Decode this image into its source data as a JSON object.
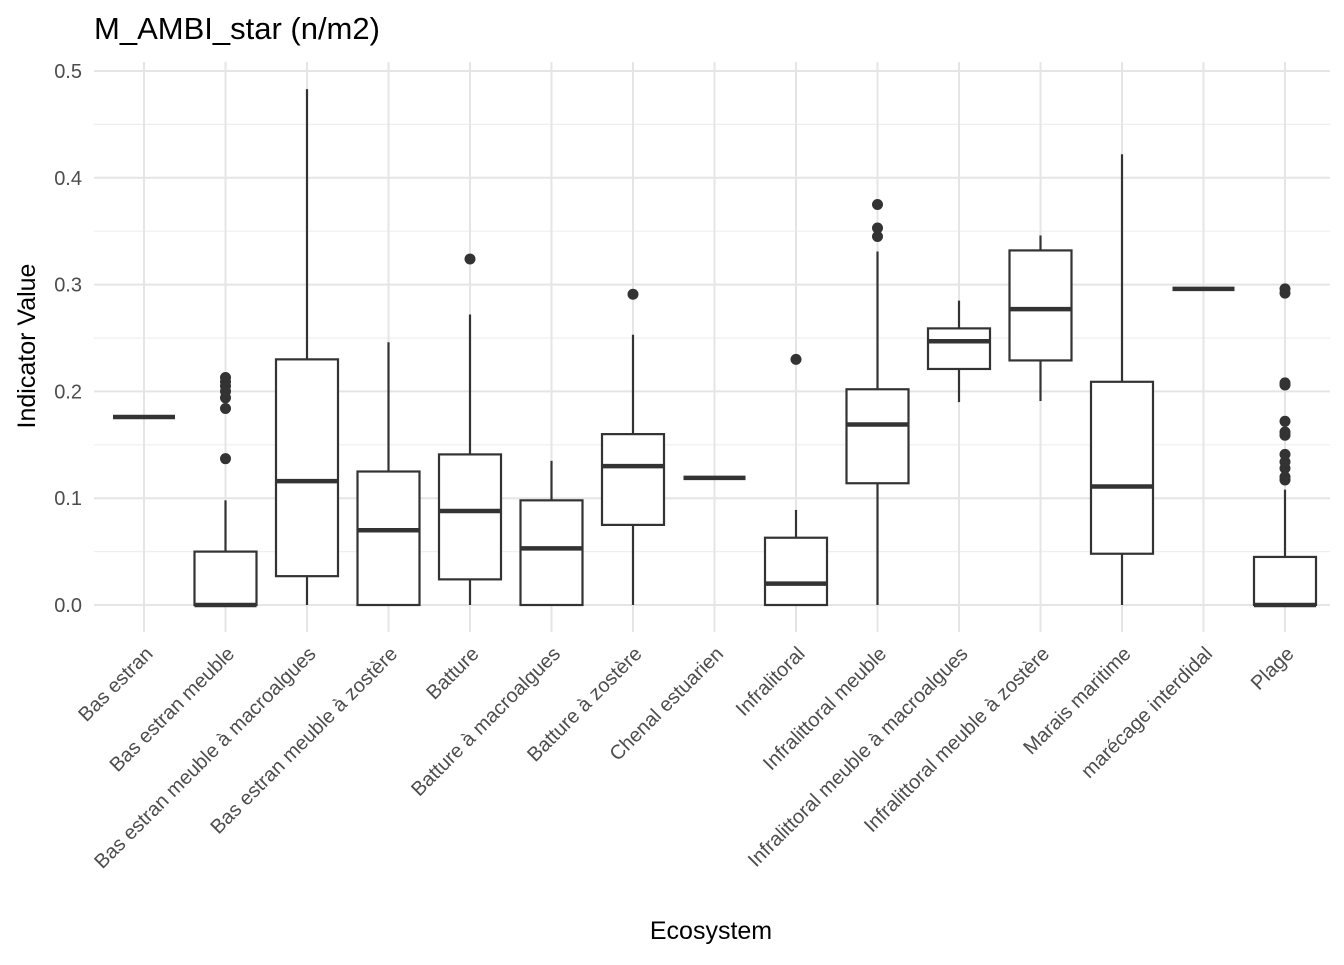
{
  "chart_data": {
    "type": "boxplot",
    "title": "M_AMBI_star (n/m2)",
    "xlabel": "Ecosystem",
    "ylabel": "Indicator Value",
    "ylim": [
      -0.025,
      0.51
    ],
    "yticks": [
      "0.0",
      "0.1",
      "0.2",
      "0.3",
      "0.4",
      "0.5"
    ],
    "grid": true,
    "categories": [
      "Bas estran",
      "Bas estran meuble",
      "Bas estran meuble à macroalgues",
      "Bas estran meuble à zostère",
      "Batture",
      "Batture à macroalgues",
      "Batture à zostère",
      "Chenal estuarien",
      "Infralitoral",
      "Infralittoral meuble",
      "Infralittoral meuble à macroalgues",
      "Infralittoral meuble à zostère",
      "Marais maritime",
      "marécage interdidal",
      "Plage"
    ],
    "boxes": [
      {
        "min": 0.176,
        "q1": 0.176,
        "median": 0.176,
        "q3": 0.176,
        "max": 0.176,
        "outliers": []
      },
      {
        "min": 0.0,
        "q1": 0.0,
        "median": 0.0,
        "q3": 0.05,
        "max": 0.098,
        "outliers": [
          0.137,
          0.184,
          0.194,
          0.2,
          0.205,
          0.209,
          0.213
        ]
      },
      {
        "min": 0.0,
        "q1": 0.027,
        "median": 0.116,
        "q3": 0.23,
        "max": 0.483,
        "outliers": []
      },
      {
        "min": 0.0,
        "q1": 0.0,
        "median": 0.07,
        "q3": 0.125,
        "max": 0.246,
        "outliers": []
      },
      {
        "min": 0.0,
        "q1": 0.024,
        "median": 0.088,
        "q3": 0.141,
        "max": 0.272,
        "outliers": [
          0.324
        ]
      },
      {
        "min": 0.0,
        "q1": 0.0,
        "median": 0.053,
        "q3": 0.098,
        "max": 0.135,
        "outliers": []
      },
      {
        "min": 0.0,
        "q1": 0.075,
        "median": 0.13,
        "q3": 0.16,
        "max": 0.253,
        "outliers": [
          0.291
        ]
      },
      {
        "min": 0.119,
        "q1": 0.119,
        "median": 0.119,
        "q3": 0.119,
        "max": 0.119,
        "outliers": []
      },
      {
        "min": 0.0,
        "q1": 0.0,
        "median": 0.02,
        "q3": 0.063,
        "max": 0.089,
        "outliers": [
          0.23
        ]
      },
      {
        "min": 0.0,
        "q1": 0.114,
        "median": 0.169,
        "q3": 0.202,
        "max": 0.331,
        "outliers": [
          0.345,
          0.353,
          0.375
        ]
      },
      {
        "min": 0.19,
        "q1": 0.221,
        "median": 0.247,
        "q3": 0.259,
        "max": 0.285,
        "outliers": []
      },
      {
        "min": 0.191,
        "q1": 0.229,
        "median": 0.277,
        "q3": 0.332,
        "max": 0.346,
        "outliers": []
      },
      {
        "min": 0.0,
        "q1": 0.048,
        "median": 0.111,
        "q3": 0.209,
        "max": 0.422,
        "outliers": []
      },
      {
        "min": 0.296,
        "q1": 0.296,
        "median": 0.296,
        "q3": 0.296,
        "max": 0.296,
        "outliers": []
      },
      {
        "min": 0.0,
        "q1": 0.0,
        "median": 0.0,
        "q3": 0.045,
        "max": 0.108,
        "outliers": [
          0.117,
          0.12,
          0.128,
          0.134,
          0.141,
          0.159,
          0.162,
          0.172,
          0.206,
          0.208,
          0.292,
          0.296
        ]
      }
    ],
    "colors": {
      "line": "#333333",
      "grid": "#e5e5e5",
      "fill": "#ffffff"
    }
  }
}
